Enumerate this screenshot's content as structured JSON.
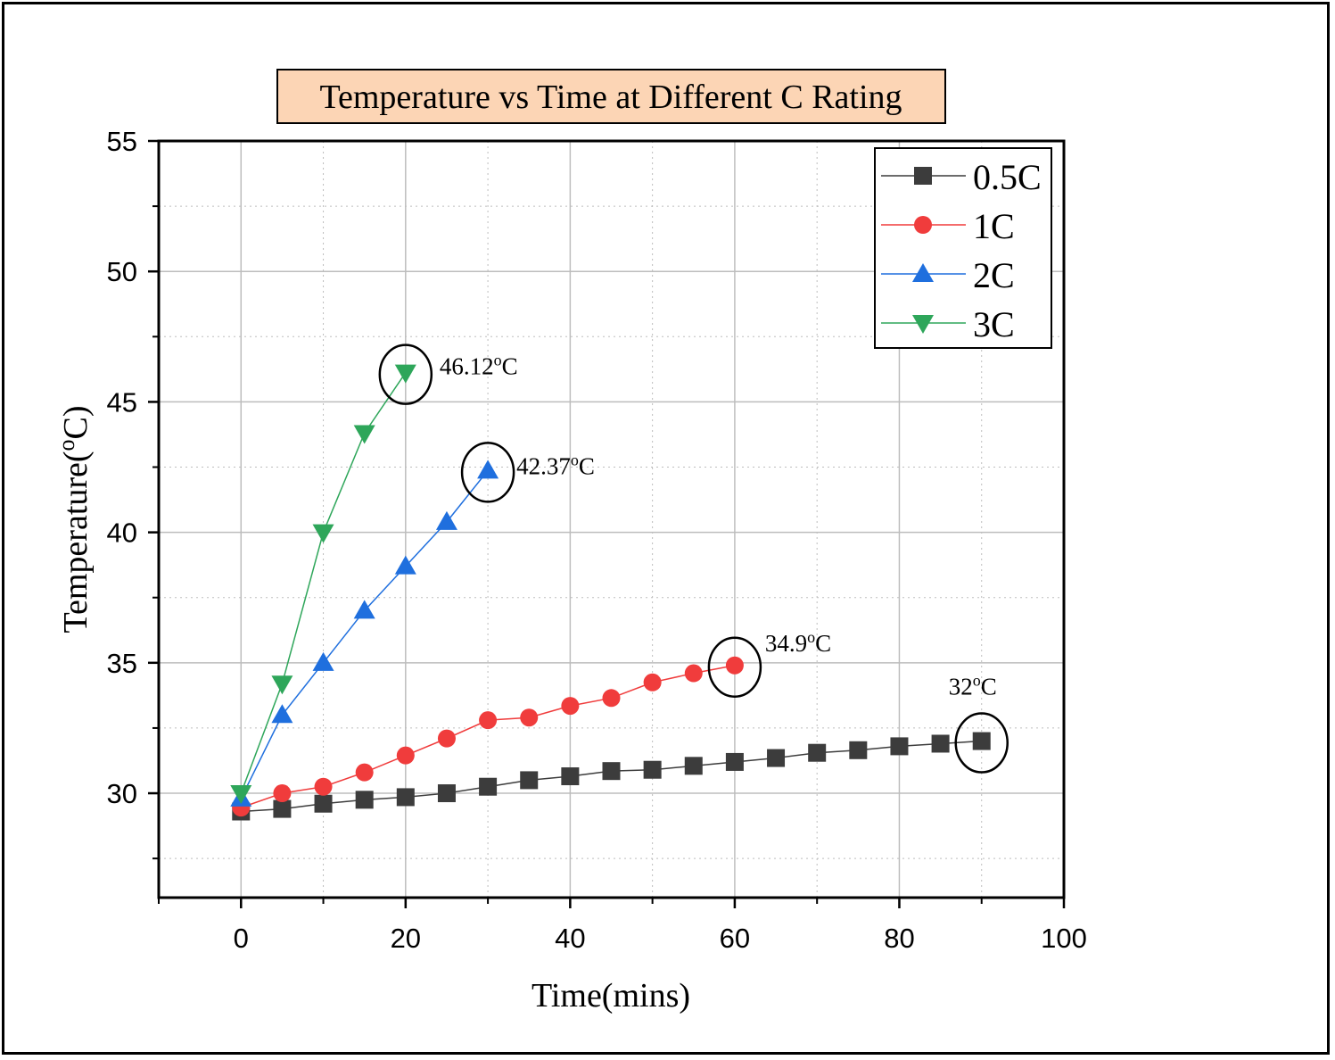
{
  "chart_data": {
    "type": "line",
    "title": "Temperature vs Time at Different C Rating",
    "xlabel": "Time(mins)",
    "ylabel": "Temperature(°C)",
    "ylabel_main": "Temperature(",
    "ylabel_sup": "o",
    "ylabel_tail": "C)",
    "xlim": [
      -10,
      100
    ],
    "ylim": [
      26,
      55
    ],
    "xticks": [
      0,
      20,
      40,
      60,
      80,
      100
    ],
    "yticks": [
      30,
      35,
      40,
      45,
      50,
      55
    ],
    "xtick_labels": [
      "0",
      "20",
      "40",
      "60",
      "80",
      "100"
    ],
    "ytick_labels": [
      "30",
      "35",
      "40",
      "45",
      "50",
      "55"
    ],
    "grid": true,
    "legend_position": "top-right",
    "series": [
      {
        "name": "0.5C",
        "color": "#3c3c3c",
        "marker": "square",
        "x": [
          0,
          5,
          10,
          15,
          20,
          25,
          30,
          35,
          40,
          45,
          50,
          55,
          60,
          65,
          70,
          75,
          80,
          85,
          90
        ],
        "y": [
          29.3,
          29.4,
          29.6,
          29.75,
          29.85,
          30.0,
          30.25,
          30.5,
          30.65,
          30.85,
          30.9,
          31.05,
          31.2,
          31.35,
          31.55,
          31.65,
          31.8,
          31.9,
          32.0
        ]
      },
      {
        "name": "1C",
        "color": "#f03c3c",
        "marker": "circle",
        "x": [
          0,
          5,
          10,
          15,
          20,
          25,
          30,
          35,
          40,
          45,
          50,
          55,
          60
        ],
        "y": [
          29.45,
          30.0,
          30.25,
          30.8,
          31.45,
          32.1,
          32.8,
          32.9,
          33.35,
          33.65,
          34.25,
          34.6,
          34.9
        ]
      },
      {
        "name": "2C",
        "color": "#1f6fde",
        "marker": "triangle-up",
        "x": [
          0,
          5,
          10,
          15,
          20,
          25,
          30
        ],
        "y": [
          29.8,
          33.0,
          35.0,
          37.0,
          38.7,
          40.4,
          42.37
        ]
      },
      {
        "name": "3C",
        "color": "#2ea65a",
        "marker": "triangle-down",
        "x": [
          0,
          5,
          10,
          15,
          20
        ],
        "y": [
          30.0,
          34.2,
          40.0,
          43.8,
          46.12
        ]
      }
    ],
    "annotations": [
      {
        "series": "3C",
        "x": 20,
        "y": 46.12,
        "value": "46.12",
        "unit": "C",
        "sup": "o"
      },
      {
        "series": "2C",
        "x": 30,
        "y": 42.37,
        "value": "42.37",
        "unit": "C",
        "sup": "o"
      },
      {
        "series": "1C",
        "x": 60,
        "y": 34.9,
        "value": "34.9",
        "unit": "C",
        "sup": "o"
      },
      {
        "series": "0.5C",
        "x": 90,
        "y": 32.0,
        "value": "32",
        "unit": "C",
        "sup": "o"
      }
    ],
    "colors": {
      "title_bg": "#fcd5b5",
      "grid": "#bdbdbd",
      "axis": "#000000"
    }
  }
}
